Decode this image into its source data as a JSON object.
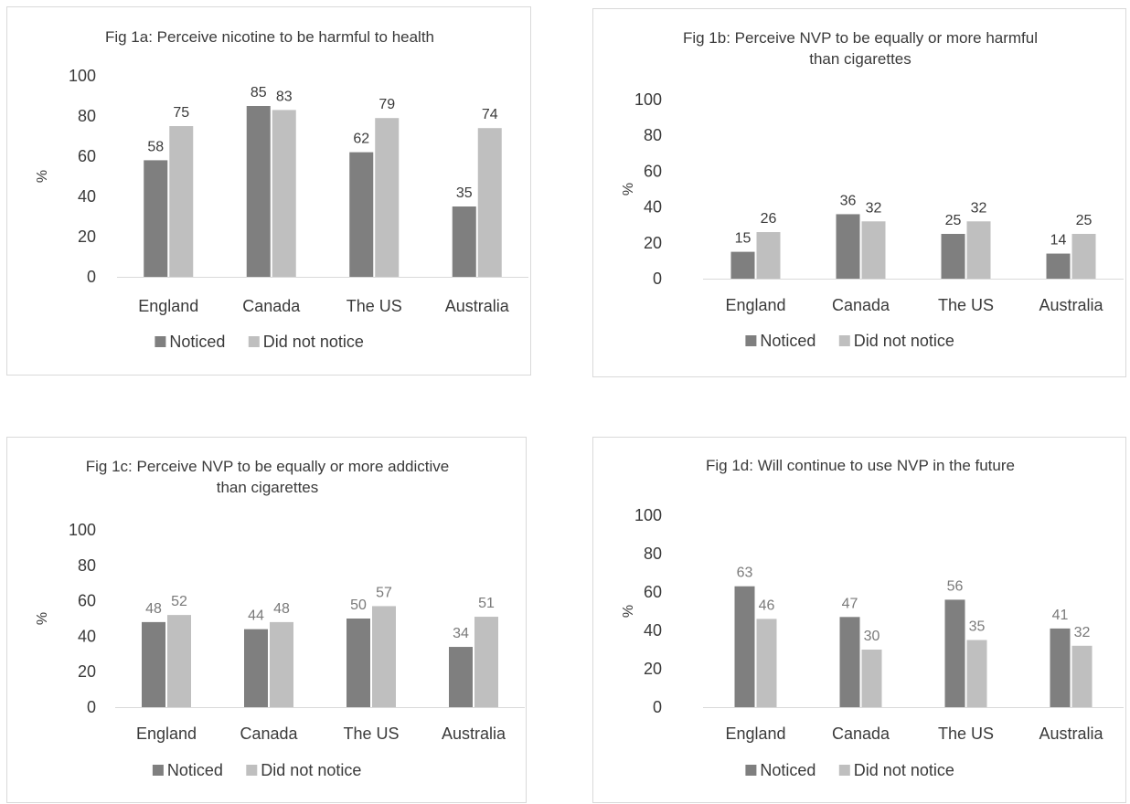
{
  "colors": {
    "noticed": "#7f7f7f",
    "did_not_notice": "#bfbfbf",
    "axis": "#d9d9d9"
  },
  "chart_data": [
    {
      "id": "a",
      "type": "bar",
      "title": [
        "Fig 1a: Perceive nicotine to be harmful to health"
      ],
      "ylabel": "%",
      "ylim": [
        0,
        100
      ],
      "yticks": [
        0,
        20,
        40,
        60,
        80,
        100
      ],
      "categories": [
        "England",
        "Canada",
        "The US",
        "Australia"
      ],
      "series": [
        {
          "name": "Noticed",
          "values": [
            58,
            85,
            62,
            35
          ]
        },
        {
          "name": "Did not notice",
          "values": [
            75,
            83,
            79,
            74
          ]
        }
      ],
      "legend_position": "bottom",
      "label_style": "dark"
    },
    {
      "id": "b",
      "type": "bar",
      "title": [
        "Fig 1b: Perceive NVP to be equally or more harmful",
        "than cigarettes"
      ],
      "ylabel": "%",
      "ylim": [
        0,
        100
      ],
      "yticks": [
        0,
        20,
        40,
        60,
        80,
        100
      ],
      "categories": [
        "England",
        "Canada",
        "The US",
        "Australia"
      ],
      "series": [
        {
          "name": "Noticed",
          "values": [
            15,
            36,
            25,
            14
          ]
        },
        {
          "name": "Did not notice",
          "values": [
            26,
            32,
            32,
            25
          ]
        }
      ],
      "legend_position": "bottom",
      "label_style": "dark"
    },
    {
      "id": "c",
      "type": "bar",
      "title": [
        "Fig 1c: Perceive NVP to be equally or more addictive",
        "than cigarettes"
      ],
      "ylabel": "%",
      "ylim": [
        0,
        100
      ],
      "yticks": [
        0,
        20,
        40,
        60,
        80,
        100
      ],
      "categories": [
        "England",
        "Canada",
        "The US",
        "Australia"
      ],
      "series": [
        {
          "name": "Noticed",
          "values": [
            48,
            44,
            50,
            34
          ]
        },
        {
          "name": "Did not notice",
          "values": [
            52,
            48,
            57,
            51
          ]
        }
      ],
      "legend_position": "bottom",
      "label_style": "light"
    },
    {
      "id": "d",
      "type": "bar",
      "title": [
        "Fig 1d: Will continue to use NVP in the future"
      ],
      "ylabel": "%",
      "ylim": [
        0,
        100
      ],
      "yticks": [
        0,
        20,
        40,
        60,
        80,
        100
      ],
      "categories": [
        "England",
        "Canada",
        "The US",
        "Australia"
      ],
      "series": [
        {
          "name": "Noticed",
          "values": [
            63,
            47,
            56,
            41
          ]
        },
        {
          "name": "Did not notice",
          "values": [
            46,
            30,
            35,
            32
          ]
        }
      ],
      "legend_position": "bottom",
      "label_style": "light"
    }
  ]
}
